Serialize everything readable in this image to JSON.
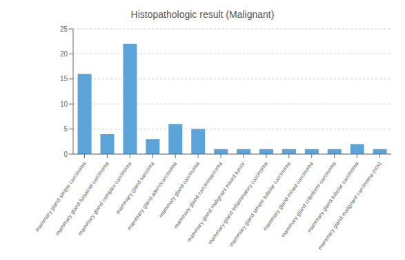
{
  "chart_data": {
    "type": "bar",
    "title": "Histopathologic result (Malignant)",
    "categories": [
      "mammary gland simple carcinoma",
      "mammary gland basaloid carcinoma",
      "mammary gland complex carcinoma",
      "mammary gland sarcoma",
      "mammary gland adenocarcinoma",
      "mammary gland carcinoma",
      "mammary gland carcinosarcoma",
      "mammary gland malignant mixed tumor",
      "mammary gland inflammatory carcinoma",
      "mammary gland simple tubular carcinoma",
      "mammary gland mixed carcinoma",
      "mammary gland cribriform carcinoma",
      "mammary gland tubular carcinoma",
      "mammary gland malignant carcinoma (nos)"
    ],
    "values": [
      16,
      4,
      22,
      3,
      6,
      5,
      1,
      1,
      1,
      1,
      1,
      1,
      2,
      1
    ],
    "color": "#5ba3d9",
    "ylim": [
      0,
      25
    ],
    "yticks": [
      0,
      5,
      10,
      15,
      20,
      25
    ],
    "grid": true
  }
}
